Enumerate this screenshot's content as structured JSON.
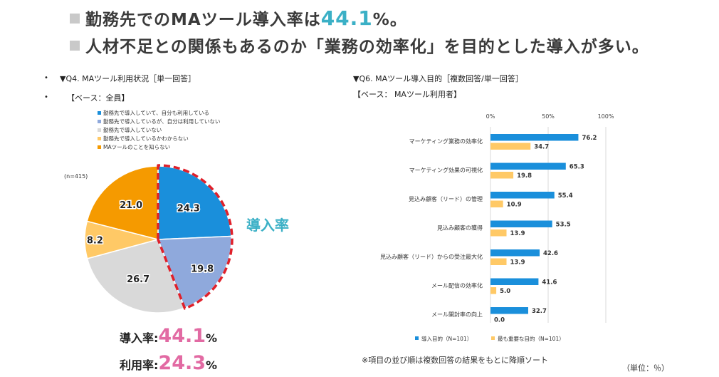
{
  "headline": {
    "line1_prefix": "勤務先でのMAツール導入率は",
    "line1_value": "44.1",
    "line1_suffix": "%。",
    "line2": "人材不足との関係もあるのか「業務の効率化」を目的とした導入が多い。"
  },
  "left": {
    "bullet": "•",
    "title": "▼Q4. MAツール利用状況［単一回答］",
    "base": "【ベース：全員】",
    "n_label": "(n=415)",
    "callout": "導入率",
    "summary": [
      {
        "label": "導入率:",
        "value": "44.1",
        "unit": "%"
      },
      {
        "label": "利用率:",
        "value": "24.3",
        "unit": "%"
      }
    ]
  },
  "right": {
    "title": "▼Q6. MAツール導入目的［複数回答/単一回答］",
    "base": "【ベース： MAツール利用者】",
    "footnote": "※項目の並び順は複数回答の結果をもとに降順ソート",
    "unit_note": "（単位：％）"
  },
  "chart_data": [
    {
      "type": "pie",
      "title": "MAツール利用状況",
      "n": 415,
      "categories": [
        "勤務先で導入していて、自分も利用している",
        "勤務先で導入しているが、自分は利用していない",
        "勤務先で導入していない",
        "勤務先で導入しているかわからない",
        "MAツールのことを知らない"
      ],
      "values": [
        24.3,
        19.8,
        26.7,
        8.2,
        21.0
      ],
      "labels": [
        "24.3",
        "19.8",
        "26.7",
        "8.2",
        "21.0"
      ],
      "colors": [
        "#1a8fdb",
        "#8fa9dc",
        "#d9d9d9",
        "#ffc966",
        "#f59a00"
      ],
      "highlight": "導入率 (24.3 + 19.8)",
      "legend_position": "top"
    },
    {
      "type": "bar",
      "orientation": "horizontal",
      "title": "MAツール導入目的",
      "categories": [
        "マーケティング業務の効率化",
        "マーケティング効果の可視化",
        "見込み顧客（リード）の管理",
        "見込み顧客の獲得",
        "見込み顧客（リード）からの受注最大化",
        "メール配信の効率化",
        "メール開封率の向上"
      ],
      "series": [
        {
          "name": "導入目的（N=101）",
          "color": "#1a8fdb",
          "values": [
            76.2,
            65.3,
            55.4,
            53.5,
            42.6,
            41.6,
            32.7
          ],
          "labels": [
            "76.2",
            "65.3",
            "55.4",
            "53.5",
            "42.6",
            "41.6",
            "32.7"
          ]
        },
        {
          "name": "最も重要な目的（N=101）",
          "color": "#ffc966",
          "values": [
            34.7,
            19.8,
            10.9,
            13.9,
            13.9,
            5.0,
            0.0
          ],
          "labels": [
            "34.7",
            "19.8",
            "10.9",
            "13.9",
            "13.9",
            "5.0",
            "0.0"
          ]
        }
      ],
      "xlim": [
        0,
        100
      ],
      "xticks": [
        "0%",
        "50%",
        "100%"
      ],
      "grid": true,
      "legend_position": "bottom"
    }
  ]
}
